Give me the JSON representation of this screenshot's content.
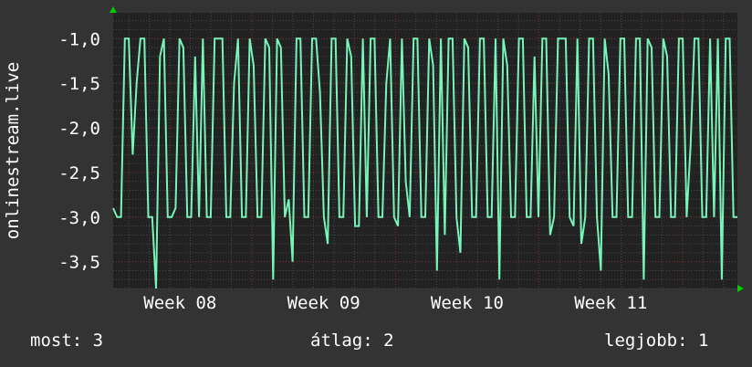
{
  "chart_data": {
    "type": "line",
    "title": "",
    "ylabel": "onlinestream.live",
    "xlabel": "",
    "ylim": [
      -3.8,
      -0.71
    ],
    "y_ticks": [
      -1.0,
      -1.5,
      -2.0,
      -2.5,
      -3.0,
      -3.5
    ],
    "y_tick_labels": [
      "-1,0",
      "-1,5",
      "-2,0",
      "-2,5",
      "-3,0",
      "-3,5"
    ],
    "x_tick_labels": [
      "Week 08",
      "Week 09",
      "Week 10",
      "Week 11"
    ],
    "grid": true,
    "colors": {
      "line": "#77f5b8",
      "plot_bg": "#222222",
      "background": "#333333",
      "major_grid": "#7a2e2e",
      "minor_grid": "#4a4a4a",
      "arrow": "#00cc00"
    },
    "series": [
      {
        "values": [
          -2.9,
          -3,
          -3,
          -1,
          -1,
          -2.3,
          -1.5,
          -1,
          -1,
          -3,
          -3,
          -3.8,
          -1.2,
          -1,
          -3,
          -3,
          -2.9,
          -1,
          -1.1,
          -3,
          -3,
          -1.2,
          -3,
          -1,
          -3,
          -3,
          -1,
          -1,
          -1,
          -3,
          -3,
          -1.5,
          -1,
          -3,
          -3,
          -1,
          -1.3,
          -3,
          -3,
          -1,
          -1.1,
          -3.7,
          -1,
          -1.1,
          -3,
          -2.8,
          -3.5,
          -1,
          -1,
          -3,
          -3,
          -1,
          -1,
          -1.6,
          -3,
          -3.3,
          -1,
          -1,
          -3,
          -3,
          -1,
          -1.2,
          -3.1,
          -3.1,
          -1,
          -3,
          -1,
          -1,
          -3,
          -3,
          -1.5,
          -1,
          -3,
          -3.1,
          -1,
          -2.6,
          -3,
          -1,
          -1,
          -3,
          -3,
          -1,
          -1.3,
          -3.6,
          -1,
          -3.2,
          -1,
          -1,
          -3,
          -3.4,
          -1,
          -1.1,
          -3,
          -3,
          -1,
          -1,
          -3,
          -3,
          -1,
          -3.7,
          -1,
          -1.3,
          -3,
          -3,
          -1,
          -1,
          -3,
          -3,
          -1.2,
          -3,
          -1,
          -1,
          -3.2,
          -3,
          -1,
          -1,
          -1,
          -3,
          -3.1,
          -1,
          -3.3,
          -3,
          -1,
          -1,
          -3,
          -3.6,
          -1,
          -1.4,
          -3,
          -3,
          -1,
          -1,
          -3,
          -3,
          -1,
          -1,
          -3.7,
          -1,
          -1.1,
          -3,
          -3,
          -1,
          -1.2,
          -3,
          -3,
          -1,
          -1,
          -3,
          -2.2,
          -1,
          -1,
          -3,
          -3,
          -1,
          -3,
          -1,
          -3.7,
          -1,
          -1,
          -3,
          -3
        ]
      }
    ]
  },
  "legend": {
    "last": "most: 3",
    "average": "átlag: 2",
    "max": "legjobb: 1"
  }
}
